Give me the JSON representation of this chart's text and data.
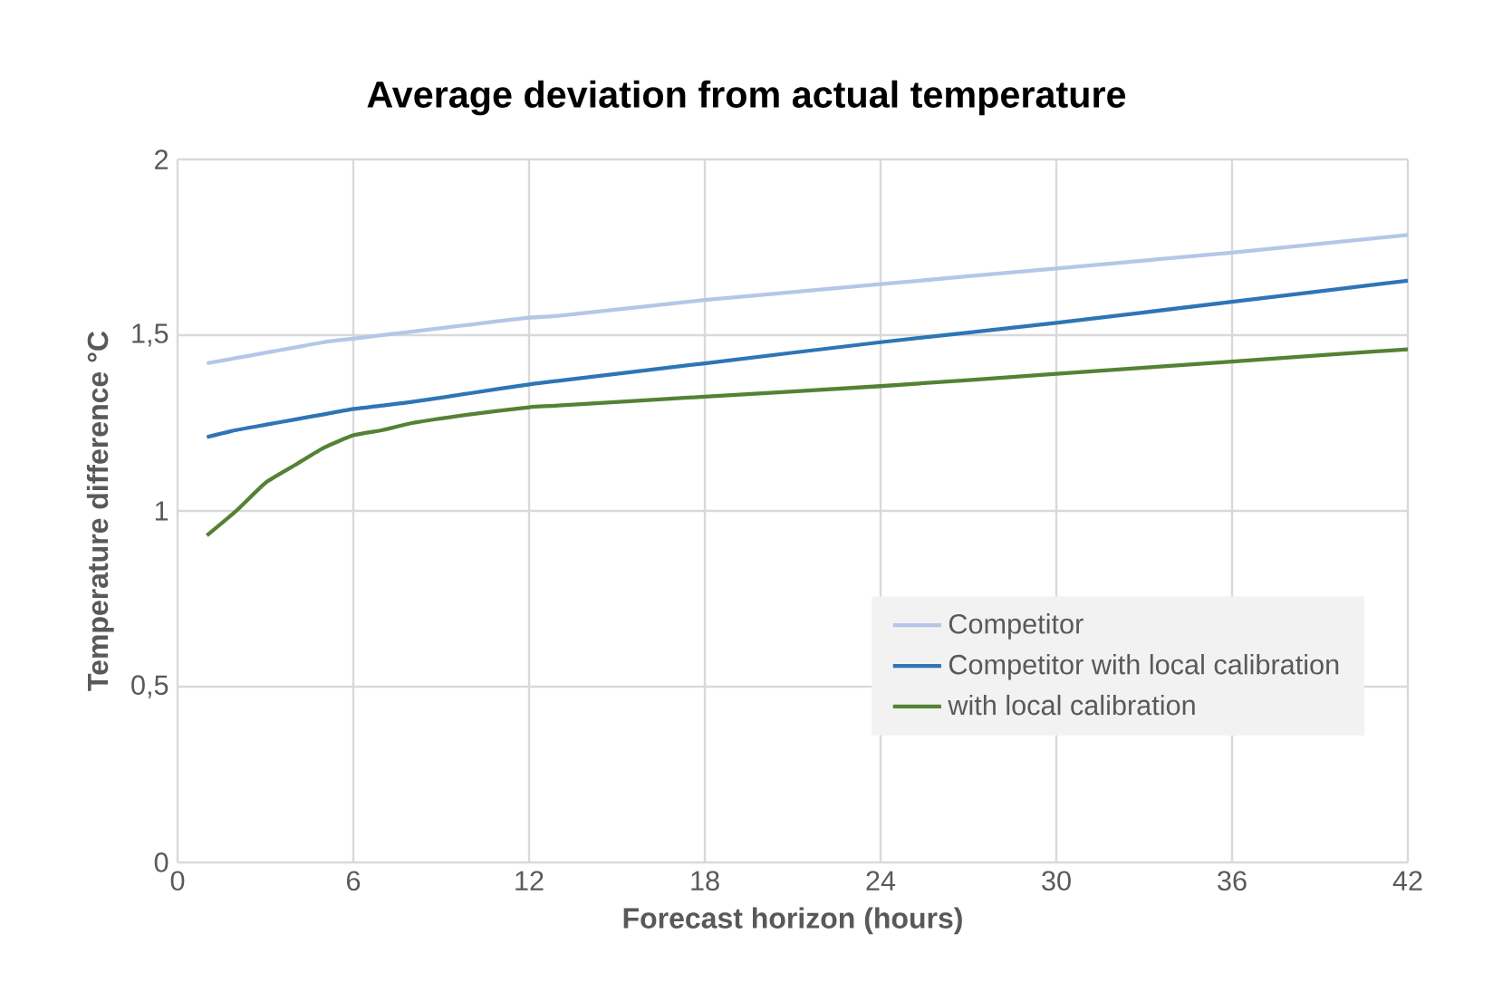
{
  "chart_data": {
    "type": "line",
    "title": "Average deviation from actual temperature",
    "xlabel": "Forecast horizon (hours)",
    "ylabel": "Temperature difference °C",
    "x": [
      1,
      2,
      3,
      4,
      5,
      6,
      7,
      8,
      10,
      12,
      13,
      18,
      24,
      30,
      36,
      42
    ],
    "series": [
      {
        "name": "Competitor",
        "color": "#b4c7e7",
        "values": [
          1.42,
          1.435,
          1.45,
          1.465,
          1.48,
          1.49,
          1.5,
          1.51,
          1.53,
          1.55,
          1.555,
          1.6,
          1.645,
          1.69,
          1.735,
          1.785
        ]
      },
      {
        "name": "Competitor with local calibration",
        "color": "#2e75b6",
        "values": [
          1.21,
          1.23,
          1.245,
          1.26,
          1.275,
          1.29,
          1.3,
          1.31,
          1.335,
          1.36,
          1.37,
          1.42,
          1.48,
          1.535,
          1.595,
          1.655
        ]
      },
      {
        "name": "with local calibration",
        "color": "#548235",
        "values": [
          0.93,
          1.0,
          1.08,
          1.13,
          1.18,
          1.215,
          1.23,
          1.25,
          1.275,
          1.295,
          1.3,
          1.325,
          1.355,
          1.39,
          1.425,
          1.46
        ]
      }
    ],
    "xlim": [
      0,
      42
    ],
    "xticks": [
      0,
      6,
      12,
      18,
      24,
      30,
      36,
      42
    ],
    "ylim": [
      0,
      2
    ],
    "yticks": [
      0,
      {
        "value": 0.5,
        "label": "0,5"
      },
      1,
      {
        "value": 1.5,
        "label": "1,5"
      },
      2
    ],
    "grid": true,
    "legend": "bottom right",
    "marker": "none",
    "line_style": "solid"
  }
}
